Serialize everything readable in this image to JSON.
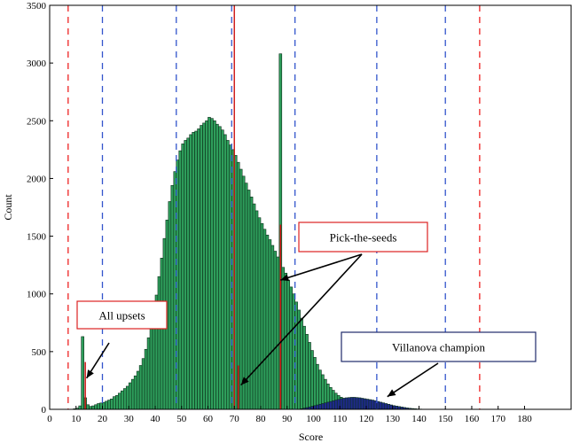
{
  "chart_data": {
    "type": "bar",
    "xlabel": "Score",
    "ylabel": "Count",
    "xlim": [
      0,
      198
    ],
    "ylim": [
      0,
      3500
    ],
    "x_ticks": [
      0,
      10,
      20,
      30,
      40,
      50,
      60,
      70,
      80,
      90,
      100,
      110,
      120,
      130,
      140,
      150,
      160,
      170,
      180
    ],
    "y_ticks": [
      0,
      500,
      1000,
      1500,
      2000,
      2500,
      3000,
      3500
    ],
    "bin_width": 1,
    "colors": {
      "green": "#2e9e5b",
      "navy": "#1f2a8c",
      "red": "#cc1111",
      "blue_line": "#3355cc",
      "red_line": "#ee2222",
      "callout_red": "#dd2222",
      "callout_navy": "#1f2a6a"
    },
    "series": [
      {
        "color": "green",
        "x_start": 9,
        "values": [
          5,
          10,
          30,
          630,
          100,
          40,
          25,
          30,
          40,
          50,
          55,
          60,
          70,
          80,
          90,
          110,
          120,
          140,
          160,
          180,
          200,
          230,
          260,
          290,
          330,
          380,
          440,
          520,
          620,
          720,
          850,
          990,
          1150,
          1310,
          1480,
          1640,
          1800,
          1940,
          2060,
          2160,
          2240,
          2300,
          2330,
          2350,
          2380,
          2400,
          2410,
          2430,
          2460,
          2480,
          2500,
          2530,
          2520,
          2500,
          2470,
          2450,
          2420,
          2380,
          2330,
          2290,
          2250,
          2200,
          2140,
          2080,
          2020,
          1960,
          1900,
          1840,
          1780,
          1720,
          1660,
          1610,
          1560,
          1510,
          1470,
          1420,
          1370,
          1320,
          3080,
          1230,
          1180,
          1120,
          1060,
          1000,
          930,
          860,
          790,
          720,
          650,
          580,
          510,
          450,
          390,
          340,
          300,
          260,
          220,
          190,
          165,
          140,
          120,
          105,
          95,
          85,
          75,
          68,
          62,
          56,
          50,
          45,
          40,
          36,
          32,
          28,
          25,
          22,
          20,
          18,
          16,
          14,
          12,
          10,
          9,
          8,
          7,
          6,
          5,
          4,
          3,
          3,
          2,
          2,
          1
        ]
      },
      {
        "color": "navy",
        "x_start": 95,
        "values": [
          5,
          10,
          15,
          20,
          26,
          32,
          38,
          44,
          50,
          56,
          62,
          68,
          74,
          80,
          86,
          92,
          96,
          100,
          102,
          104,
          104,
          102,
          100,
          96,
          92,
          88,
          84,
          80,
          74,
          68,
          62,
          56,
          50,
          44,
          38,
          32,
          28,
          24,
          20,
          16,
          12,
          9,
          7,
          5,
          3,
          2,
          1
        ]
      },
      {
        "color": "red",
        "x": [
          13,
          71,
          87
        ],
        "values": [
          410,
          380,
          1600
        ]
      }
    ],
    "reference_lines": [
      {
        "x": 7,
        "color": "red_line"
      },
      {
        "x": 20,
        "color": "blue_line"
      },
      {
        "x": 48,
        "color": "blue_line"
      },
      {
        "x": 69,
        "color": "blue_line"
      },
      {
        "x": 70,
        "color": "red",
        "solid": true
      },
      {
        "x": 93,
        "color": "blue_line"
      },
      {
        "x": 124,
        "color": "blue_line"
      },
      {
        "x": 150,
        "color": "blue_line"
      },
      {
        "x": 163,
        "color": "red_line"
      }
    ],
    "annotations": [
      {
        "text": "All upsets",
        "border": "callout_red",
        "target": {
          "x": 14,
          "y": 270
        }
      },
      {
        "text": "Pick-the-seeds",
        "border": "callout_red",
        "targets": [
          {
            "x": 87.5,
            "y": 1120
          },
          {
            "x": 72.5,
            "y": 210
          }
        ]
      },
      {
        "text": "Villanova champion",
        "border": "callout_navy",
        "target": {
          "x": 128,
          "y": 110
        }
      }
    ]
  }
}
